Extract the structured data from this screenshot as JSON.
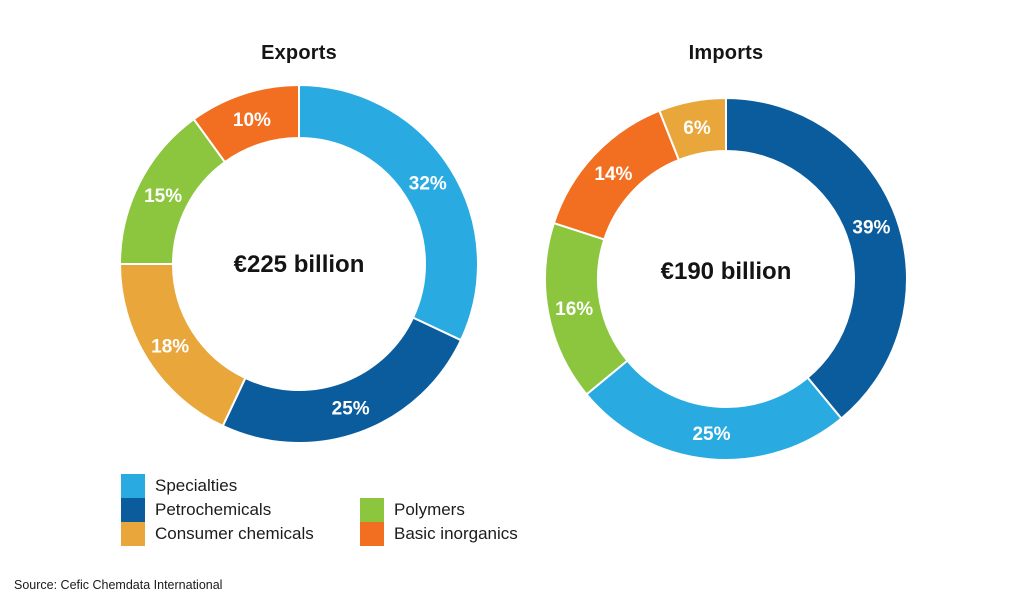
{
  "chart_data": [
    {
      "type": "pie",
      "subtype": "donut",
      "title": "Exports",
      "center_label": "€225 billion",
      "unit": "%",
      "direction": "clockwise",
      "start_angle_deg": 0,
      "labels": [
        "Specialties",
        "Petrochemicals",
        "Consumer chemicals",
        "Polymers",
        "Basic inorganics"
      ],
      "values": [
        32,
        25,
        18,
        15,
        10
      ],
      "colors": [
        "#29ABE2",
        "#0B5C9D",
        "#E9A63B",
        "#8CC63F",
        "#F26F21"
      ]
    },
    {
      "type": "pie",
      "subtype": "donut",
      "title": "Imports",
      "center_label": "€190 billion",
      "unit": "%",
      "direction": "clockwise",
      "start_angle_deg": 0,
      "labels": [
        "Petrochemicals",
        "Specialties",
        "Polymers",
        "Basic inorganics",
        "Consumer chemicals"
      ],
      "values": [
        39,
        25,
        16,
        14,
        6
      ],
      "colors": [
        "#0B5C9D",
        "#29ABE2",
        "#8CC63F",
        "#F26F21",
        "#E9A63B"
      ]
    }
  ],
  "legend": {
    "columns": [
      {
        "items": [
          {
            "label": "Specialties",
            "color": "#29ABE2"
          },
          {
            "label": "Petrochemicals",
            "color": "#0B5C9D"
          },
          {
            "label": "Consumer chemicals",
            "color": "#E9A63B"
          }
        ]
      },
      {
        "items": [
          {
            "label": "Polymers",
            "color": "#8CC63F"
          },
          {
            "label": "Basic inorganics",
            "color": "#F26F21"
          }
        ]
      }
    ]
  },
  "source": "Source: Cefic Chemdata International",
  "colors": {
    "specialties": "#29ABE2",
    "petrochemicals": "#0B5C9D",
    "consumer_chemicals": "#E9A63B",
    "polymers": "#8CC63F",
    "basic_inorganics": "#F26F21",
    "segment_divider": "#FFFFFF",
    "text": "#141414"
  }
}
